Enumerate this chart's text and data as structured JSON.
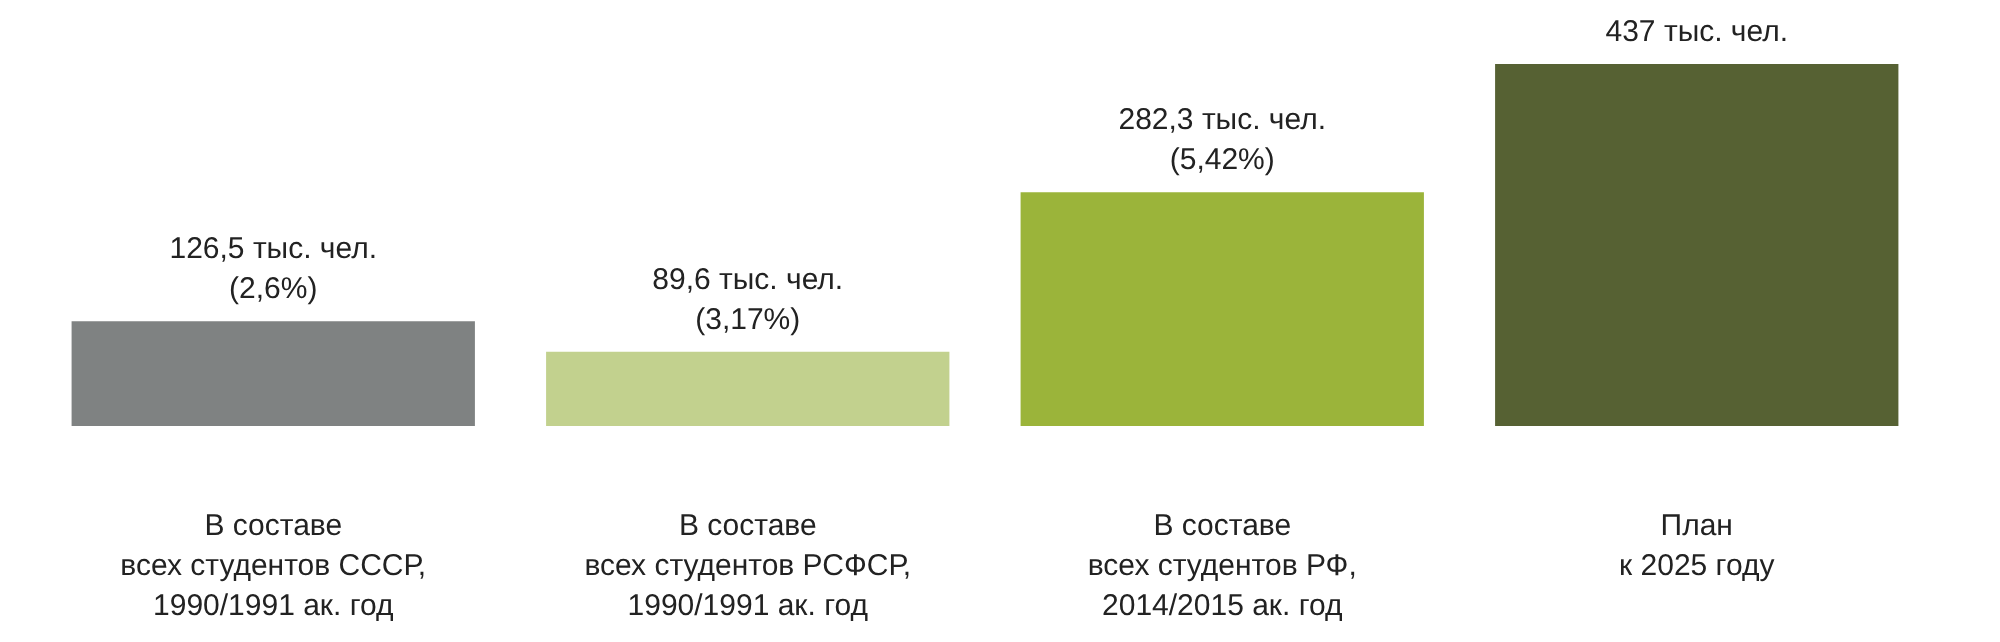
{
  "chart_data": {
    "type": "bar",
    "categories": [
      "В составе\nвсех студентов СССР,\n1990/1991 ак. год",
      "В составе\nвсех студентов РСФСР,\n1990/1991 ак. год",
      "В составе\nвсех студентов РФ,\n2014/2015 ак. год",
      "План\nк 2025 году"
    ],
    "values": [
      126.5,
      89.6,
      282.3,
      437
    ],
    "colors": [
      "#7f8282",
      "#c2d18e",
      "#9bb43a",
      "#566133"
    ],
    "value_labels": [
      "126,5 тыс. чел.\n(2,6%)",
      "89,6 тыс. чел.\n(3,17%)",
      "282,3 тыс. чел.\n(5,42%)",
      "437 тыс. чел."
    ],
    "grid": false
  }
}
